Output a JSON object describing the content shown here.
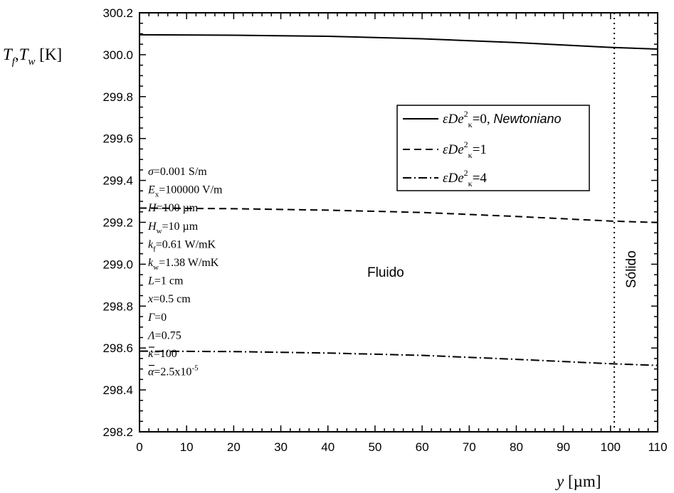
{
  "chart_data": {
    "type": "line",
    "y_axis_label": {
      "T1": "T",
      "s1": "f",
      "sep": ",",
      "T2": "T",
      "s2": "w",
      "unit": " [K]"
    },
    "x_axis_label": {
      "var": "y",
      "unit": " [µm]"
    },
    "xlim": [
      0,
      110
    ],
    "ylim": [
      298.2,
      300.2
    ],
    "x_ticks": [
      "0",
      "10",
      "20",
      "30",
      "40",
      "50",
      "60",
      "70",
      "80",
      "90",
      "100",
      "110"
    ],
    "y_ticks": [
      "300.2",
      "300.0",
      "299.8",
      "299.6",
      "299.4",
      "299.2",
      "299.0",
      "298.8",
      "298.6",
      "298.4",
      "298.2"
    ],
    "x_tick_values": [
      0,
      10,
      20,
      30,
      40,
      50,
      60,
      70,
      80,
      90,
      100,
      110
    ],
    "y_tick_values": [
      300.2,
      300.0,
      299.8,
      299.6,
      299.4,
      299.2,
      299.0,
      298.8,
      298.6,
      298.4,
      298.2
    ],
    "series": [
      {
        "name": "εDe²κ=0, Newtoniano",
        "dash": "solid",
        "x": [
          0,
          20,
          40,
          60,
          80,
          100,
          110
        ],
        "y": [
          300.095,
          300.093,
          300.088,
          300.076,
          300.058,
          300.035,
          300.027
        ]
      },
      {
        "name": "εDe²κ=1",
        "dash": "dash",
        "x": [
          0,
          20,
          40,
          60,
          80,
          100,
          110
        ],
        "y": [
          299.268,
          299.265,
          299.258,
          299.247,
          299.228,
          299.206,
          299.199
        ]
      },
      {
        "name": "εDe²κ=4",
        "dash": "dashdot",
        "x": [
          0,
          20,
          40,
          60,
          80,
          100,
          110
        ],
        "y": [
          298.585,
          298.583,
          298.576,
          298.565,
          298.546,
          298.525,
          298.517
        ]
      }
    ],
    "legend": {
      "position": "top-right",
      "entries": [
        {
          "pre": "εDe",
          "sup": "2",
          "sub": "κ",
          "post": "=0, ",
          "extra": "Newtoniano"
        },
        {
          "pre": "εDe",
          "sup": "2",
          "sub": "κ",
          "post": "=1",
          "extra": ""
        },
        {
          "pre": "εDe",
          "sup": "2",
          "sub": "κ",
          "post": "=4",
          "extra": ""
        }
      ]
    },
    "annotations": {
      "fluid_label": "Fluido",
      "solid_label": "Sólido",
      "interface_x": 100.8,
      "params": [
        {
          "sym": "σ",
          "sub": "",
          "val": "=0.001 S/m"
        },
        {
          "sym": "E",
          "sub": "x",
          "val": "=100000 V/m"
        },
        {
          "sym": "H",
          "sub": "",
          "val": "=100 µm"
        },
        {
          "sym": "H",
          "sub": "w",
          "val": "=10 µm"
        },
        {
          "sym": "k",
          "sub": "f",
          "val": "=0.61 W/mK"
        },
        {
          "sym": "k",
          "sub": "w",
          "val": "=1.38 W/mK"
        },
        {
          "sym": "L",
          "sub": "",
          "val": "=1 cm"
        },
        {
          "sym": "x",
          "sub": "",
          "val": "=0.5 cm"
        },
        {
          "sym": "Γ",
          "sub": "",
          "val": "=0"
        },
        {
          "sym": "Λ",
          "sub": "",
          "val": "=0.75"
        },
        {
          "sym": "κ",
          "sub": "",
          "val": "=100",
          "bar": true
        },
        {
          "sym": "α",
          "sub": "",
          "val": "=2.5x10",
          "sup": "-5",
          "bar": true
        }
      ]
    }
  }
}
